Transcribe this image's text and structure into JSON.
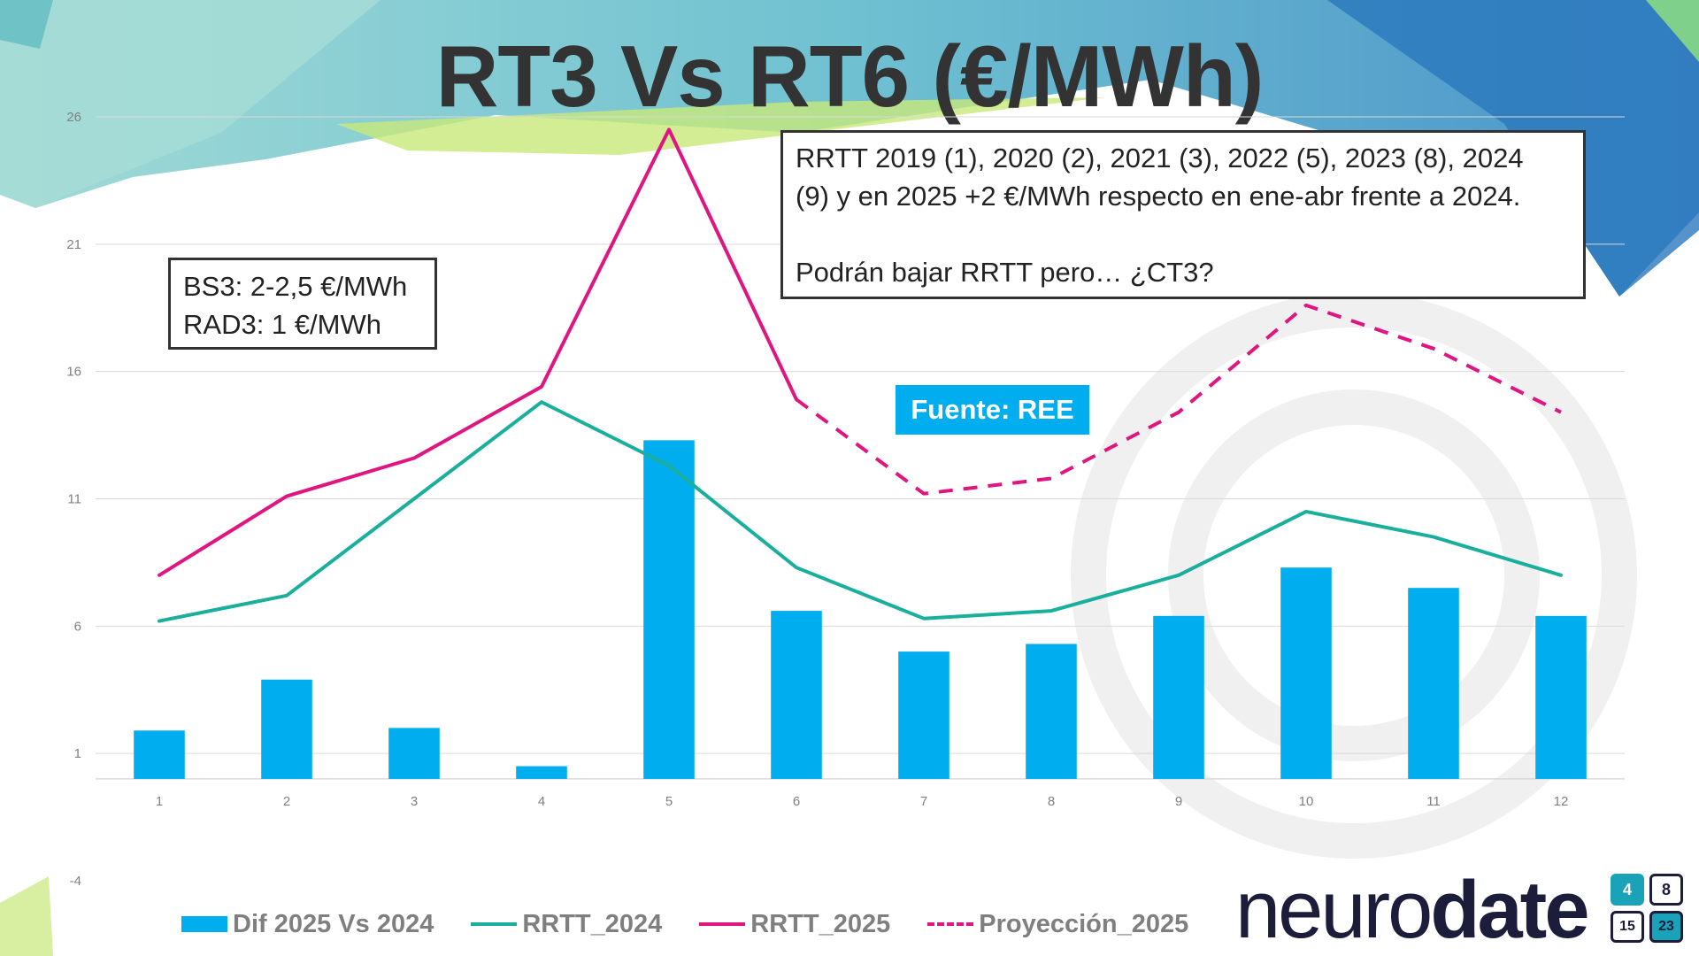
{
  "title": "RT3 Vs RT6 (€/MWh)",
  "annotations": {
    "bs3_lines": [
      "BS3: 2-2,5 €/MWh",
      "RAD3: 1 €/MWh"
    ],
    "rrtt_lines": [
      "RRTT 2019 (1), 2020 (2), 2021 (3), 2022 (5), 2023 (8), 2024",
      "(9) y en 2025 +2 €/MWh respecto en ene-abr frente a 2024.",
      "",
      "Podrán bajar RRTT pero… ¿CT3?"
    ],
    "source": "Fuente: REE"
  },
  "logo": {
    "text_light": "neuro",
    "text_bold": "date",
    "tiles": [
      "4",
      "8",
      "15",
      "23"
    ],
    "colors": {
      "text": "#1b1d3a",
      "tile_teal": "#1aa3b8"
    }
  },
  "colors": {
    "bar": "#00aeef",
    "rrtt_2024": "#1aaf9c",
    "rrtt_2025": "#e0157f",
    "proyeccion_2025": "#e0157f",
    "gridline": "#d9d9d9",
    "title": "#333333"
  },
  "chart_data": {
    "type": "bar",
    "categories": [
      "1",
      "2",
      "3",
      "4",
      "5",
      "6",
      "7",
      "8",
      "9",
      "10",
      "11",
      "12"
    ],
    "ylim": [
      -4,
      26
    ],
    "yticks": [
      -4,
      1,
      6,
      11,
      16,
      21,
      26
    ],
    "grid": true,
    "legend_position": "bottom",
    "series": [
      {
        "name": "Dif 2025 Vs 2024",
        "type": "bar",
        "values": [
          1.9,
          3.9,
          2.0,
          0.5,
          13.3,
          6.6,
          5.0,
          5.3,
          6.4,
          8.3,
          7.5,
          6.4
        ]
      },
      {
        "name": "RRTT_2024",
        "type": "line",
        "style": "solid",
        "values": [
          6.2,
          7.2,
          11.0,
          14.8,
          12.3,
          8.3,
          6.3,
          6.6,
          8.0,
          10.5,
          9.5,
          8.0
        ]
      },
      {
        "name": "RRTT_2025",
        "type": "line",
        "style": "solid",
        "values": [
          8.0,
          11.1,
          12.6,
          15.4,
          25.5,
          14.9,
          null,
          null,
          null,
          null,
          null,
          null
        ]
      },
      {
        "name": "Proyección_2025",
        "type": "line",
        "style": "dashed",
        "values": [
          null,
          null,
          null,
          null,
          null,
          14.9,
          11.2,
          11.8,
          14.4,
          18.6,
          16.9,
          14.4
        ]
      }
    ]
  }
}
